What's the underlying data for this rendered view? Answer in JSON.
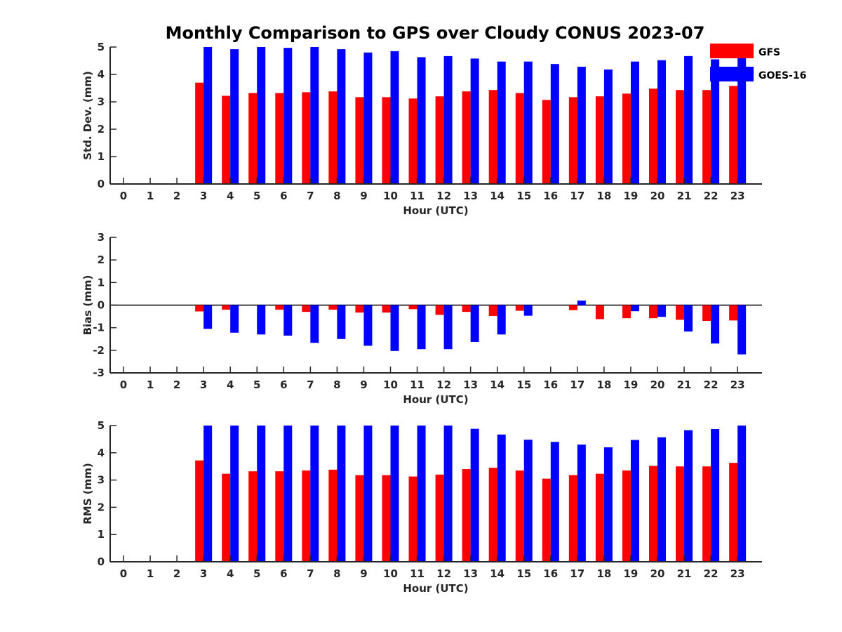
{
  "title": "Monthly Comparison to GPS over Cloudy CONUS 2023-07",
  "legend": {
    "placement": "top-right",
    "items": [
      {
        "label": "GFS",
        "color": "#ff0000"
      },
      {
        "label": "GOES-16",
        "color": "#0000ff"
      }
    ]
  },
  "chart_data": [
    {
      "type": "bar",
      "ylabel": "Std. Dev. (mm)",
      "xlabel": "Hour (UTC)",
      "categories": [
        "0",
        "1",
        "2",
        "3",
        "4",
        "5",
        "6",
        "7",
        "8",
        "9",
        "10",
        "11",
        "12",
        "13",
        "14",
        "15",
        "16",
        "17",
        "18",
        "19",
        "20",
        "21",
        "22",
        "23"
      ],
      "ylim": [
        0,
        5
      ],
      "yticks": [
        0,
        1,
        2,
        3,
        4,
        5
      ],
      "series": [
        {
          "name": "GFS",
          "color": "#ff0000",
          "values": [
            null,
            null,
            null,
            3.7,
            3.22,
            3.32,
            3.32,
            3.35,
            3.38,
            3.17,
            3.17,
            3.12,
            3.2,
            3.38,
            3.43,
            3.32,
            3.07,
            3.17,
            3.2,
            3.3,
            3.48,
            3.43,
            3.43,
            3.58
          ]
        },
        {
          "name": "GOES-16",
          "color": "#0000ff",
          "values": [
            null,
            null,
            null,
            5.0,
            4.92,
            5.0,
            4.97,
            5.0,
            4.92,
            4.8,
            4.85,
            4.63,
            4.67,
            4.58,
            4.47,
            4.47,
            4.38,
            4.28,
            4.18,
            4.47,
            4.52,
            4.67,
            4.55,
            4.62
          ]
        }
      ]
    },
    {
      "type": "bar",
      "ylabel": "Bias (mm)",
      "xlabel": "Hour (UTC)",
      "categories": [
        "0",
        "1",
        "2",
        "3",
        "4",
        "5",
        "6",
        "7",
        "8",
        "9",
        "10",
        "11",
        "12",
        "13",
        "14",
        "15",
        "16",
        "17",
        "18",
        "19",
        "20",
        "21",
        "22",
        "23"
      ],
      "ylim": [
        -3,
        3
      ],
      "yticks": [
        -3,
        -2,
        -1,
        0,
        1,
        2,
        3
      ],
      "series": [
        {
          "name": "GFS",
          "color": "#ff0000",
          "values": [
            null,
            null,
            null,
            -0.28,
            -0.2,
            0.0,
            -0.2,
            -0.3,
            -0.2,
            -0.33,
            -0.33,
            -0.18,
            -0.43,
            -0.3,
            -0.48,
            -0.25,
            0.0,
            -0.22,
            -0.62,
            -0.58,
            -0.58,
            -0.65,
            -0.7,
            -0.68
          ]
        },
        {
          "name": "GOES-16",
          "color": "#0000ff",
          "values": [
            null,
            null,
            null,
            -1.05,
            -1.22,
            -1.3,
            -1.35,
            -1.67,
            -1.5,
            -1.8,
            -2.03,
            -1.95,
            -1.95,
            -1.63,
            -1.3,
            -0.47,
            0.0,
            0.2,
            0.0,
            -0.27,
            -0.52,
            -1.17,
            -1.7,
            -2.18
          ]
        }
      ]
    },
    {
      "type": "bar",
      "ylabel": "RMS (mm)",
      "xlabel": "Hour (UTC)",
      "categories": [
        "0",
        "1",
        "2",
        "3",
        "4",
        "5",
        "6",
        "7",
        "8",
        "9",
        "10",
        "11",
        "12",
        "13",
        "14",
        "15",
        "16",
        "17",
        "18",
        "19",
        "20",
        "21",
        "22",
        "23"
      ],
      "ylim": [
        0,
        5
      ],
      "yticks": [
        0,
        1,
        2,
        3,
        4,
        5
      ],
      "series": [
        {
          "name": "GFS",
          "color": "#ff0000",
          "values": [
            null,
            null,
            null,
            3.72,
            3.23,
            3.32,
            3.32,
            3.35,
            3.38,
            3.18,
            3.18,
            3.13,
            3.2,
            3.4,
            3.45,
            3.35,
            3.05,
            3.18,
            3.23,
            3.35,
            3.52,
            3.5,
            3.5,
            3.63
          ]
        },
        {
          "name": "GOES-16",
          "color": "#0000ff",
          "values": [
            null,
            null,
            null,
            5.0,
            5.0,
            5.0,
            5.0,
            5.0,
            5.0,
            5.0,
            5.0,
            5.0,
            5.0,
            4.88,
            4.67,
            4.48,
            4.4,
            4.3,
            4.2,
            4.47,
            4.57,
            4.83,
            4.87,
            5.0
          ]
        }
      ]
    }
  ]
}
